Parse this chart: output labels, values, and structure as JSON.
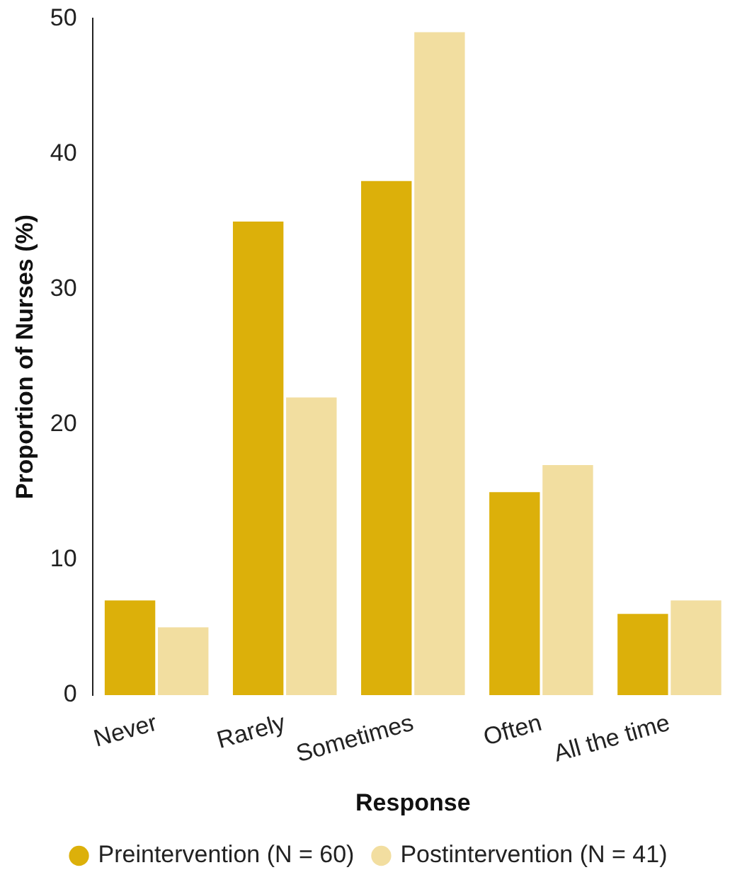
{
  "chart_data": {
    "type": "bar",
    "xlabel": "Response",
    "ylabel": "Proportion of Nurses (%)",
    "categories": [
      "Never",
      "Rarely",
      "Sometimes",
      "Often",
      "All the time"
    ],
    "series": [
      {
        "name": "Preintervention (N = 60)",
        "color": "#dcb00a",
        "values": [
          7,
          35,
          38,
          15,
          6
        ]
      },
      {
        "name": "Postintervention (N = 41)",
        "color": "#f2dea0",
        "values": [
          5,
          22,
          49,
          17,
          7
        ]
      }
    ],
    "ylim": [
      0,
      50
    ],
    "yticks": [
      0,
      10,
      20,
      30,
      40,
      50
    ],
    "grid": false,
    "legend": "bottom"
  }
}
